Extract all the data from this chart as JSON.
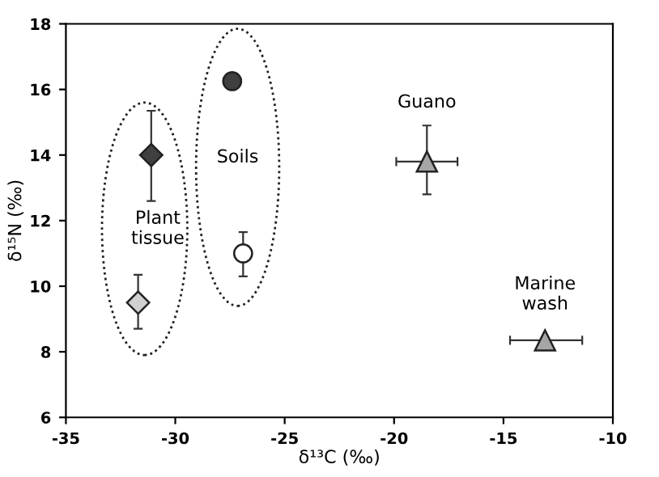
{
  "chart_data": {
    "type": "scatter",
    "xlabel": "δ¹³C (‰)",
    "ylabel": "δ¹⁵N (‰)",
    "xlim": [
      -35,
      -10
    ],
    "xticks": [
      -35,
      -30,
      -25,
      -20,
      -15,
      -10
    ],
    "ylim": [
      6,
      18
    ],
    "yticks": [
      6,
      8,
      10,
      12,
      14,
      16,
      18
    ],
    "grid": false,
    "legend": false,
    "series": [
      {
        "x": [
          -31.1
        ],
        "values": [
          14.0
        ],
        "errors": [
          [
            12.6,
            15.35
          ]
        ],
        "xerrors": [
          null
        ],
        "color": "#404040",
        "marker": "diamond"
      },
      {
        "x": [
          -31.7
        ],
        "values": [
          9.5
        ],
        "errors": [
          [
            8.7,
            10.35
          ]
        ],
        "xerrors": [
          [
            -32.0,
            -31.4
          ]
        ],
        "color": "#d0d0d0",
        "marker": "diamond"
      },
      {
        "x": [
          -27.4
        ],
        "values": [
          16.25
        ],
        "errors": [
          null
        ],
        "xerrors": [
          null
        ],
        "color": "#404040",
        "marker": "circle"
      },
      {
        "x": [
          -26.9
        ],
        "values": [
          11.0
        ],
        "errors": [
          [
            10.3,
            11.65
          ]
        ],
        "xerrors": [
          [
            -27.2,
            -26.6
          ]
        ],
        "color": "#ffffff",
        "marker": "circle"
      },
      {
        "x": [
          -18.5
        ],
        "values": [
          13.8
        ],
        "errors": [
          [
            12.8,
            14.9
          ]
        ],
        "xerrors": [
          [
            -19.9,
            -17.1
          ]
        ],
        "color": "#a6a6a6",
        "marker": "triangle"
      },
      {
        "x": [
          -13.1
        ],
        "values": [
          8.35
        ],
        "errors": [
          null
        ],
        "xerrors": [
          [
            -14.7,
            -11.4
          ]
        ],
        "color": "#a6a6a6",
        "marker": "triangle"
      }
    ],
    "annotations": [
      "Plant\ntissue",
      "Soils",
      "Guano",
      "Marine\nwash"
    ]
  }
}
